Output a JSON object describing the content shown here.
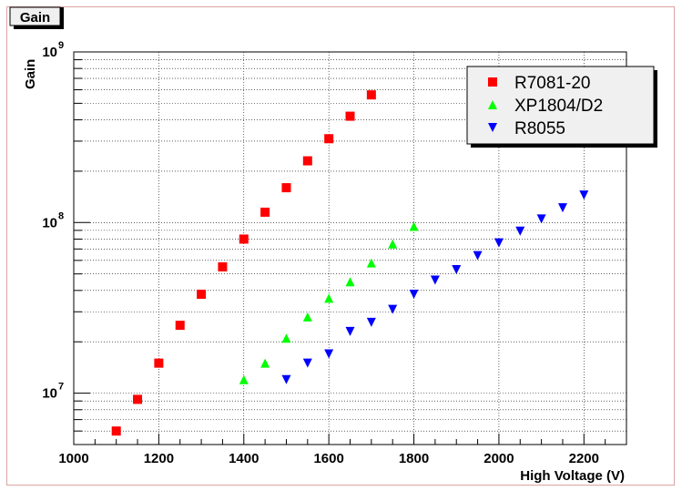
{
  "chart_data": {
    "type": "scatter",
    "title": "Gain",
    "xlabel": "High Voltage (V)",
    "ylabel": "Gain",
    "xlim": [
      1000,
      2300
    ],
    "ylim": [
      5000000,
      1000000000
    ],
    "y_scale": "log",
    "grid": true,
    "legend_position": "top-right",
    "x_ticks": [
      {
        "value": 1000,
        "label": "1000"
      },
      {
        "value": 1200,
        "label": "1200"
      },
      {
        "value": 1400,
        "label": "1400"
      },
      {
        "value": 1600,
        "label": "1600"
      },
      {
        "value": 1800,
        "label": "1800"
      },
      {
        "value": 2000,
        "label": "2000"
      },
      {
        "value": 2200,
        "label": "2200"
      }
    ],
    "y_ticks": [
      {
        "value": 10000000,
        "base": "10",
        "exp": "7"
      },
      {
        "value": 100000000,
        "base": "10",
        "exp": "8"
      },
      {
        "value": 1000000000,
        "base": "10",
        "exp": "9"
      }
    ],
    "series": [
      {
        "name": "R7081-20",
        "color": "#ff0000",
        "marker": "square",
        "points": [
          {
            "x": 1100,
            "y": 6000000
          },
          {
            "x": 1150,
            "y": 9200000
          },
          {
            "x": 1200,
            "y": 15000000
          },
          {
            "x": 1250,
            "y": 25000000
          },
          {
            "x": 1300,
            "y": 38000000
          },
          {
            "x": 1350,
            "y": 55000000
          },
          {
            "x": 1400,
            "y": 80000000
          },
          {
            "x": 1450,
            "y": 115000000
          },
          {
            "x": 1500,
            "y": 160000000
          },
          {
            "x": 1550,
            "y": 230000000
          },
          {
            "x": 1600,
            "y": 310000000
          },
          {
            "x": 1650,
            "y": 420000000
          },
          {
            "x": 1700,
            "y": 560000000
          }
        ]
      },
      {
        "name": "XP1804/D2",
        "color": "#00ff00",
        "marker": "triangle-up",
        "points": [
          {
            "x": 1400,
            "y": 12000000
          },
          {
            "x": 1450,
            "y": 15000000
          },
          {
            "x": 1500,
            "y": 21000000
          },
          {
            "x": 1550,
            "y": 28000000
          },
          {
            "x": 1600,
            "y": 36000000
          },
          {
            "x": 1650,
            "y": 45000000
          },
          {
            "x": 1700,
            "y": 58000000
          },
          {
            "x": 1750,
            "y": 75000000
          },
          {
            "x": 1800,
            "y": 95000000
          }
        ]
      },
      {
        "name": "R8055",
        "color": "#0000ff",
        "marker": "triangle-down",
        "points": [
          {
            "x": 1500,
            "y": 12000000
          },
          {
            "x": 1550,
            "y": 15000000
          },
          {
            "x": 1600,
            "y": 17000000
          },
          {
            "x": 1650,
            "y": 23000000
          },
          {
            "x": 1700,
            "y": 26000000
          },
          {
            "x": 1750,
            "y": 31000000
          },
          {
            "x": 1800,
            "y": 38000000
          },
          {
            "x": 1850,
            "y": 46000000
          },
          {
            "x": 1900,
            "y": 53000000
          },
          {
            "x": 1950,
            "y": 64000000
          },
          {
            "x": 2000,
            "y": 76000000
          },
          {
            "x": 2050,
            "y": 89000000
          },
          {
            "x": 2100,
            "y": 105000000
          },
          {
            "x": 2150,
            "y": 122000000
          },
          {
            "x": 2200,
            "y": 145000000
          }
        ]
      }
    ]
  }
}
